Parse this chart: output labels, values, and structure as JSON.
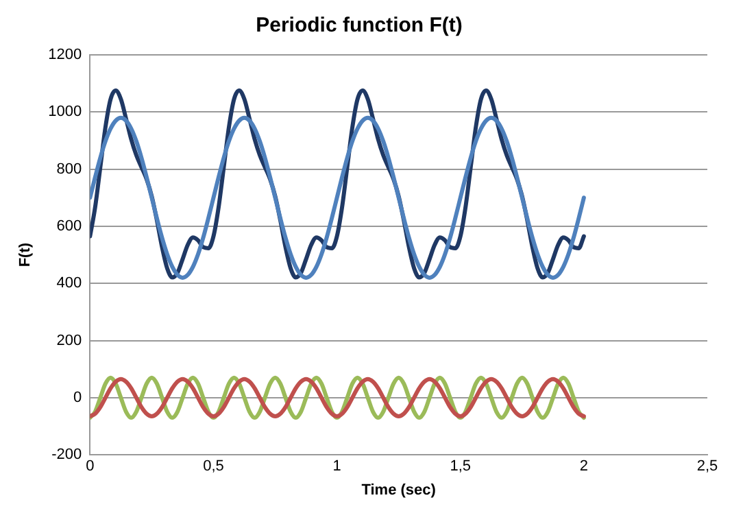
{
  "chart_data": {
    "type": "line",
    "title": "Periodic function F(t)",
    "xlabel": "Time (sec)",
    "ylabel": "F(t)",
    "x": [
      0,
      0.0208,
      0.0417,
      0.0625,
      0.0833,
      0.1042,
      0.125,
      0.1458,
      0.1667,
      0.1875,
      0.2083,
      0.2292,
      0.25,
      0.2708,
      0.2917,
      0.3125,
      0.3333,
      0.3542,
      0.375,
      0.3958,
      0.4167,
      0.4375,
      0.4583,
      0.4792,
      0.5,
      0.5208,
      0.5417,
      0.5625,
      0.5833,
      0.6042,
      0.625,
      0.6458,
      0.6667,
      0.6875,
      0.7083,
      0.7292,
      0.75,
      0.7708,
      0.7917,
      0.8125,
      0.8333,
      0.8542,
      0.875,
      0.8958,
      0.9167,
      0.9375,
      0.9583,
      0.9792,
      1,
      1.0208,
      1.0417,
      1.0625,
      1.0833,
      1.1042,
      1.125,
      1.1458,
      1.1667,
      1.1875,
      1.2083,
      1.2292,
      1.25,
      1.2708,
      1.2917,
      1.3125,
      1.3333,
      1.3542,
      1.375,
      1.3958,
      1.4167,
      1.4375,
      1.4583,
      1.4792,
      1.5,
      1.5208,
      1.5417,
      1.5625,
      1.5833,
      1.6042,
      1.625,
      1.6458,
      1.6667,
      1.6875,
      1.7083,
      1.7292,
      1.75,
      1.7708,
      1.7917,
      1.8125,
      1.8333,
      1.8542,
      1.875,
      1.8958,
      1.9167,
      1.9375,
      1.9583,
      1.9792,
      2
    ],
    "series": [
      {
        "color": "#4f81bd",
        "values": [
          700,
          772,
          840,
          898,
          942,
          970,
          980,
          970,
          942,
          898,
          840,
          772,
          700,
          628,
          560,
          502,
          458,
          430,
          420,
          430,
          458,
          502,
          560,
          628,
          700,
          772,
          840,
          898,
          942,
          970,
          980,
          970,
          942,
          898,
          840,
          772,
          700,
          628,
          560,
          502,
          458,
          430,
          420,
          430,
          458,
          502,
          560,
          628,
          700,
          772,
          840,
          898,
          942,
          970,
          980,
          970,
          942,
          898,
          840,
          772,
          700,
          628,
          560,
          502,
          458,
          430,
          420,
          430,
          458,
          502,
          560,
          628,
          700,
          772,
          840,
          898,
          942,
          970,
          980,
          970,
          942,
          898,
          840,
          772,
          700,
          628,
          560,
          502,
          458,
          430,
          420,
          430,
          458,
          502,
          560,
          628,
          700
        ]
      },
      {
        "color": "#1f3864",
        "values": [
          565,
          667,
          807,
          947,
          1045,
          1075,
          1045,
          977,
          905,
          849,
          807,
          765,
          705,
          621,
          527,
          453,
          421,
          437,
          485,
          535,
          561,
          551,
          527,
          523,
          565,
          667,
          807,
          947,
          1045,
          1075,
          1045,
          977,
          905,
          849,
          807,
          765,
          705,
          621,
          527,
          453,
          421,
          437,
          485,
          535,
          561,
          551,
          527,
          523,
          565,
          667,
          807,
          947,
          1045,
          1075,
          1045,
          977,
          905,
          849,
          807,
          765,
          705,
          621,
          527,
          453,
          421,
          437,
          485,
          535,
          561,
          551,
          527,
          523,
          565,
          667,
          807,
          947,
          1045,
          1075,
          1045,
          977,
          905,
          849,
          807,
          765,
          705,
          621,
          527,
          453,
          421,
          437,
          485,
          535,
          561,
          551,
          527,
          523,
          565
        ]
      },
      {
        "color": "#c0504d",
        "values": [
          -65,
          -56,
          -33,
          0,
          33,
          56,
          65,
          56,
          33,
          0,
          -33,
          -56,
          -65,
          -56,
          -33,
          0,
          33,
          56,
          65,
          56,
          33,
          0,
          -33,
          -56,
          -65,
          -56,
          -33,
          0,
          33,
          56,
          65,
          56,
          33,
          0,
          -33,
          -56,
          -65,
          -56,
          -33,
          0,
          33,
          56,
          65,
          56,
          33,
          0,
          -33,
          -56,
          -65,
          -56,
          -33,
          0,
          33,
          56,
          65,
          56,
          33,
          0,
          -33,
          -56,
          -65,
          -56,
          -33,
          0,
          33,
          56,
          65,
          56,
          33,
          0,
          -33,
          -56,
          -65,
          -56,
          -33,
          0,
          33,
          56,
          65,
          56,
          33,
          0,
          -33,
          -56,
          -65,
          -56,
          -33,
          0,
          33,
          56,
          65,
          56,
          33,
          0,
          -33,
          -56,
          -65
        ]
      },
      {
        "color": "#9bbb59",
        "values": [
          -70,
          -49,
          0,
          49,
          70,
          49,
          0,
          -49,
          -70,
          -49,
          0,
          49,
          70,
          49,
          0,
          -49,
          -70,
          -49,
          0,
          49,
          70,
          49,
          0,
          -49,
          -70,
          -49,
          0,
          49,
          70,
          49,
          0,
          -49,
          -70,
          -49,
          0,
          49,
          70,
          49,
          0,
          -49,
          -70,
          -49,
          0,
          49,
          70,
          49,
          0,
          -49,
          -70,
          -49,
          0,
          49,
          70,
          49,
          0,
          -49,
          -70,
          -49,
          0,
          49,
          70,
          49,
          0,
          -49,
          -70,
          -49,
          0,
          49,
          70,
          49,
          0,
          -49,
          -70,
          -49,
          0,
          49,
          70,
          49,
          0,
          -49,
          -70,
          -49,
          0,
          49,
          70,
          49,
          0,
          -49,
          -70,
          -49,
          0,
          49,
          70,
          49,
          0,
          -49,
          -70
        ]
      }
    ],
    "xlim": [
      0,
      2.5
    ],
    "xticks": [
      0,
      {
        "value": 0.5,
        "label": "0,5"
      },
      1,
      {
        "value": 1.5,
        "label": "1,5"
      },
      2,
      {
        "value": 2.5,
        "label": "2,5"
      }
    ],
    "ylim": [
      -200,
      1200
    ],
    "yticks": [
      -200,
      0,
      200,
      400,
      600,
      800,
      1000,
      1200
    ],
    "grid": "y",
    "legend": false,
    "marker": "none",
    "line_style": "solid"
  }
}
